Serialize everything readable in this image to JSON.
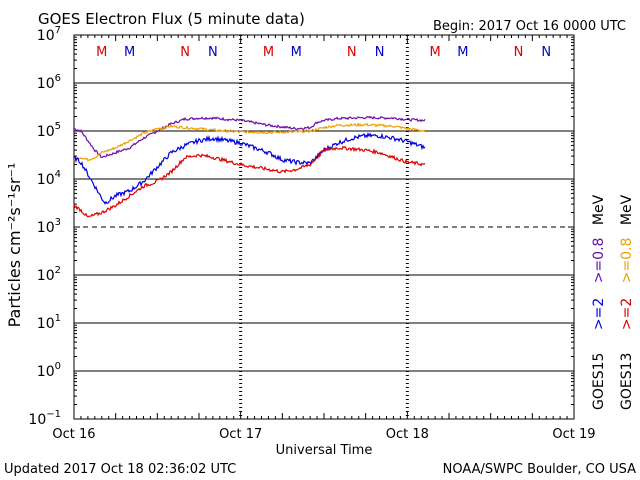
{
  "chart_data": {
    "type": "line",
    "title": "GOES Electron Flux (5 minute data)",
    "begin": "Begin: 2017 Oct 16 0000 UTC",
    "xlabel": "Universal Time",
    "ylabel": "Particles cm⁻²s⁻¹sr⁻¹",
    "updated": "Updated 2017 Oct 18 02:36:02 UTC",
    "credit": "NOAA/SWPC Boulder, CO USA",
    "x_unit": "hours since 2017 Oct 16 00:00 UTC",
    "xlim": [
      0,
      72
    ],
    "ylim_log10": [
      -1,
      7
    ],
    "x_ticks": [
      {
        "x": 0,
        "label": "Oct 16"
      },
      {
        "x": 24,
        "label": "Oct 17"
      },
      {
        "x": 48,
        "label": "Oct 18"
      },
      {
        "x": 72,
        "label": "Oct 19"
      }
    ],
    "y_ticks": [
      {
        "exp": 7,
        "base": "10",
        "sup": "7"
      },
      {
        "exp": 6,
        "base": "10",
        "sup": "6"
      },
      {
        "exp": 5,
        "base": "10",
        "sup": "5"
      },
      {
        "exp": 4,
        "base": "10",
        "sup": "4"
      },
      {
        "exp": 3,
        "base": "10",
        "sup": "3"
      },
      {
        "exp": 2,
        "base": "10",
        "sup": "2"
      },
      {
        "exp": 1,
        "base": "10",
        "sup": "1"
      },
      {
        "exp": 0,
        "base": "10",
        "sup": "0"
      },
      {
        "exp": -1,
        "base": "10",
        "sup": "−1"
      }
    ],
    "alert_threshold_log10": 3,
    "markers": [
      {
        "x": 4,
        "label": "M",
        "color": "#dd0000"
      },
      {
        "x": 8,
        "label": "M",
        "color": "#0000cc"
      },
      {
        "x": 16,
        "label": "N",
        "color": "#dd0000"
      },
      {
        "x": 20,
        "label": "N",
        "color": "#0000cc"
      },
      {
        "x": 28,
        "label": "M",
        "color": "#dd0000"
      },
      {
        "x": 32,
        "label": "M",
        "color": "#0000cc"
      },
      {
        "x": 40,
        "label": "N",
        "color": "#dd0000"
      },
      {
        "x": 44,
        "label": "N",
        "color": "#0000cc"
      },
      {
        "x": 52,
        "label": "M",
        "color": "#dd0000"
      },
      {
        "x": 56,
        "label": "M",
        "color": "#0000cc"
      },
      {
        "x": 64,
        "label": "N",
        "color": "#dd0000"
      },
      {
        "x": 68,
        "label": "N",
        "color": "#0000cc"
      }
    ],
    "legend": {
      "goes15": {
        "name": "GOES15",
        "e2": ">=2",
        "e08": ">=0.8",
        "unit": "MeV"
      },
      "goes13": {
        "name": "GOES13",
        "e2": ">=2",
        "e08": ">=0.8",
        "unit": "MeV"
      }
    },
    "series": [
      {
        "name": "GOES15 >=0.8 MeV",
        "color": "#6a0dad",
        "noise": 0.05,
        "x": [
          0,
          1,
          2,
          3,
          4,
          5,
          6,
          8,
          10,
          12,
          14,
          16,
          18,
          20,
          24,
          28,
          32,
          34,
          35,
          36,
          38,
          42,
          46,
          48,
          50.6
        ],
        "log10": [
          5.05,
          5.0,
          4.8,
          4.6,
          4.45,
          4.5,
          4.55,
          4.65,
          4.85,
          5.0,
          5.15,
          5.25,
          5.27,
          5.27,
          5.22,
          5.12,
          5.05,
          5.07,
          5.18,
          5.22,
          5.26,
          5.28,
          5.27,
          5.24,
          5.22
        ]
      },
      {
        "name": "GOES13 >=0.8 MeV",
        "color": "#f0a000",
        "noise": 0.05,
        "x": [
          0,
          1,
          2,
          3,
          4,
          6,
          8,
          10,
          12,
          14,
          16,
          18,
          20,
          24,
          28,
          32,
          34,
          36,
          38,
          42,
          46,
          48,
          50.6
        ],
        "log10": [
          4.4,
          4.45,
          4.4,
          4.45,
          4.55,
          4.65,
          4.8,
          4.95,
          5.05,
          5.1,
          5.07,
          5.05,
          5.02,
          4.98,
          4.97,
          4.98,
          5.0,
          5.07,
          5.12,
          5.13,
          5.1,
          5.05,
          5.0
        ]
      },
      {
        "name": "GOES15 >=2 MeV",
        "color": "#0000dd",
        "noise": 0.09,
        "x": [
          0,
          1,
          2,
          3,
          4,
          4.5,
          5,
          6,
          8,
          10,
          12,
          14,
          16,
          18,
          20,
          24,
          28,
          30,
          32,
          34,
          36,
          38,
          40,
          42,
          44,
          46,
          48,
          50.6
        ],
        "log10": [
          4.45,
          4.35,
          4.1,
          3.85,
          3.6,
          3.5,
          3.55,
          3.65,
          3.75,
          3.95,
          4.25,
          4.55,
          4.7,
          4.8,
          4.85,
          4.75,
          4.55,
          4.4,
          4.35,
          4.33,
          4.6,
          4.75,
          4.85,
          4.9,
          4.9,
          4.85,
          4.78,
          4.65
        ]
      },
      {
        "name": "GOES13 >=2 MeV",
        "color": "#dd0000",
        "noise": 0.07,
        "x": [
          0,
          1,
          2,
          3,
          4,
          6,
          8,
          10,
          12,
          14,
          16,
          18,
          20,
          24,
          28,
          30,
          32,
          34,
          36,
          38,
          40,
          42,
          44,
          46,
          48,
          50.6
        ],
        "log10": [
          3.45,
          3.35,
          3.2,
          3.25,
          3.3,
          3.45,
          3.65,
          3.85,
          3.95,
          4.15,
          4.45,
          4.5,
          4.45,
          4.3,
          4.2,
          4.15,
          4.2,
          4.3,
          4.6,
          4.65,
          4.63,
          4.6,
          4.55,
          4.45,
          4.35,
          4.3
        ]
      }
    ]
  }
}
